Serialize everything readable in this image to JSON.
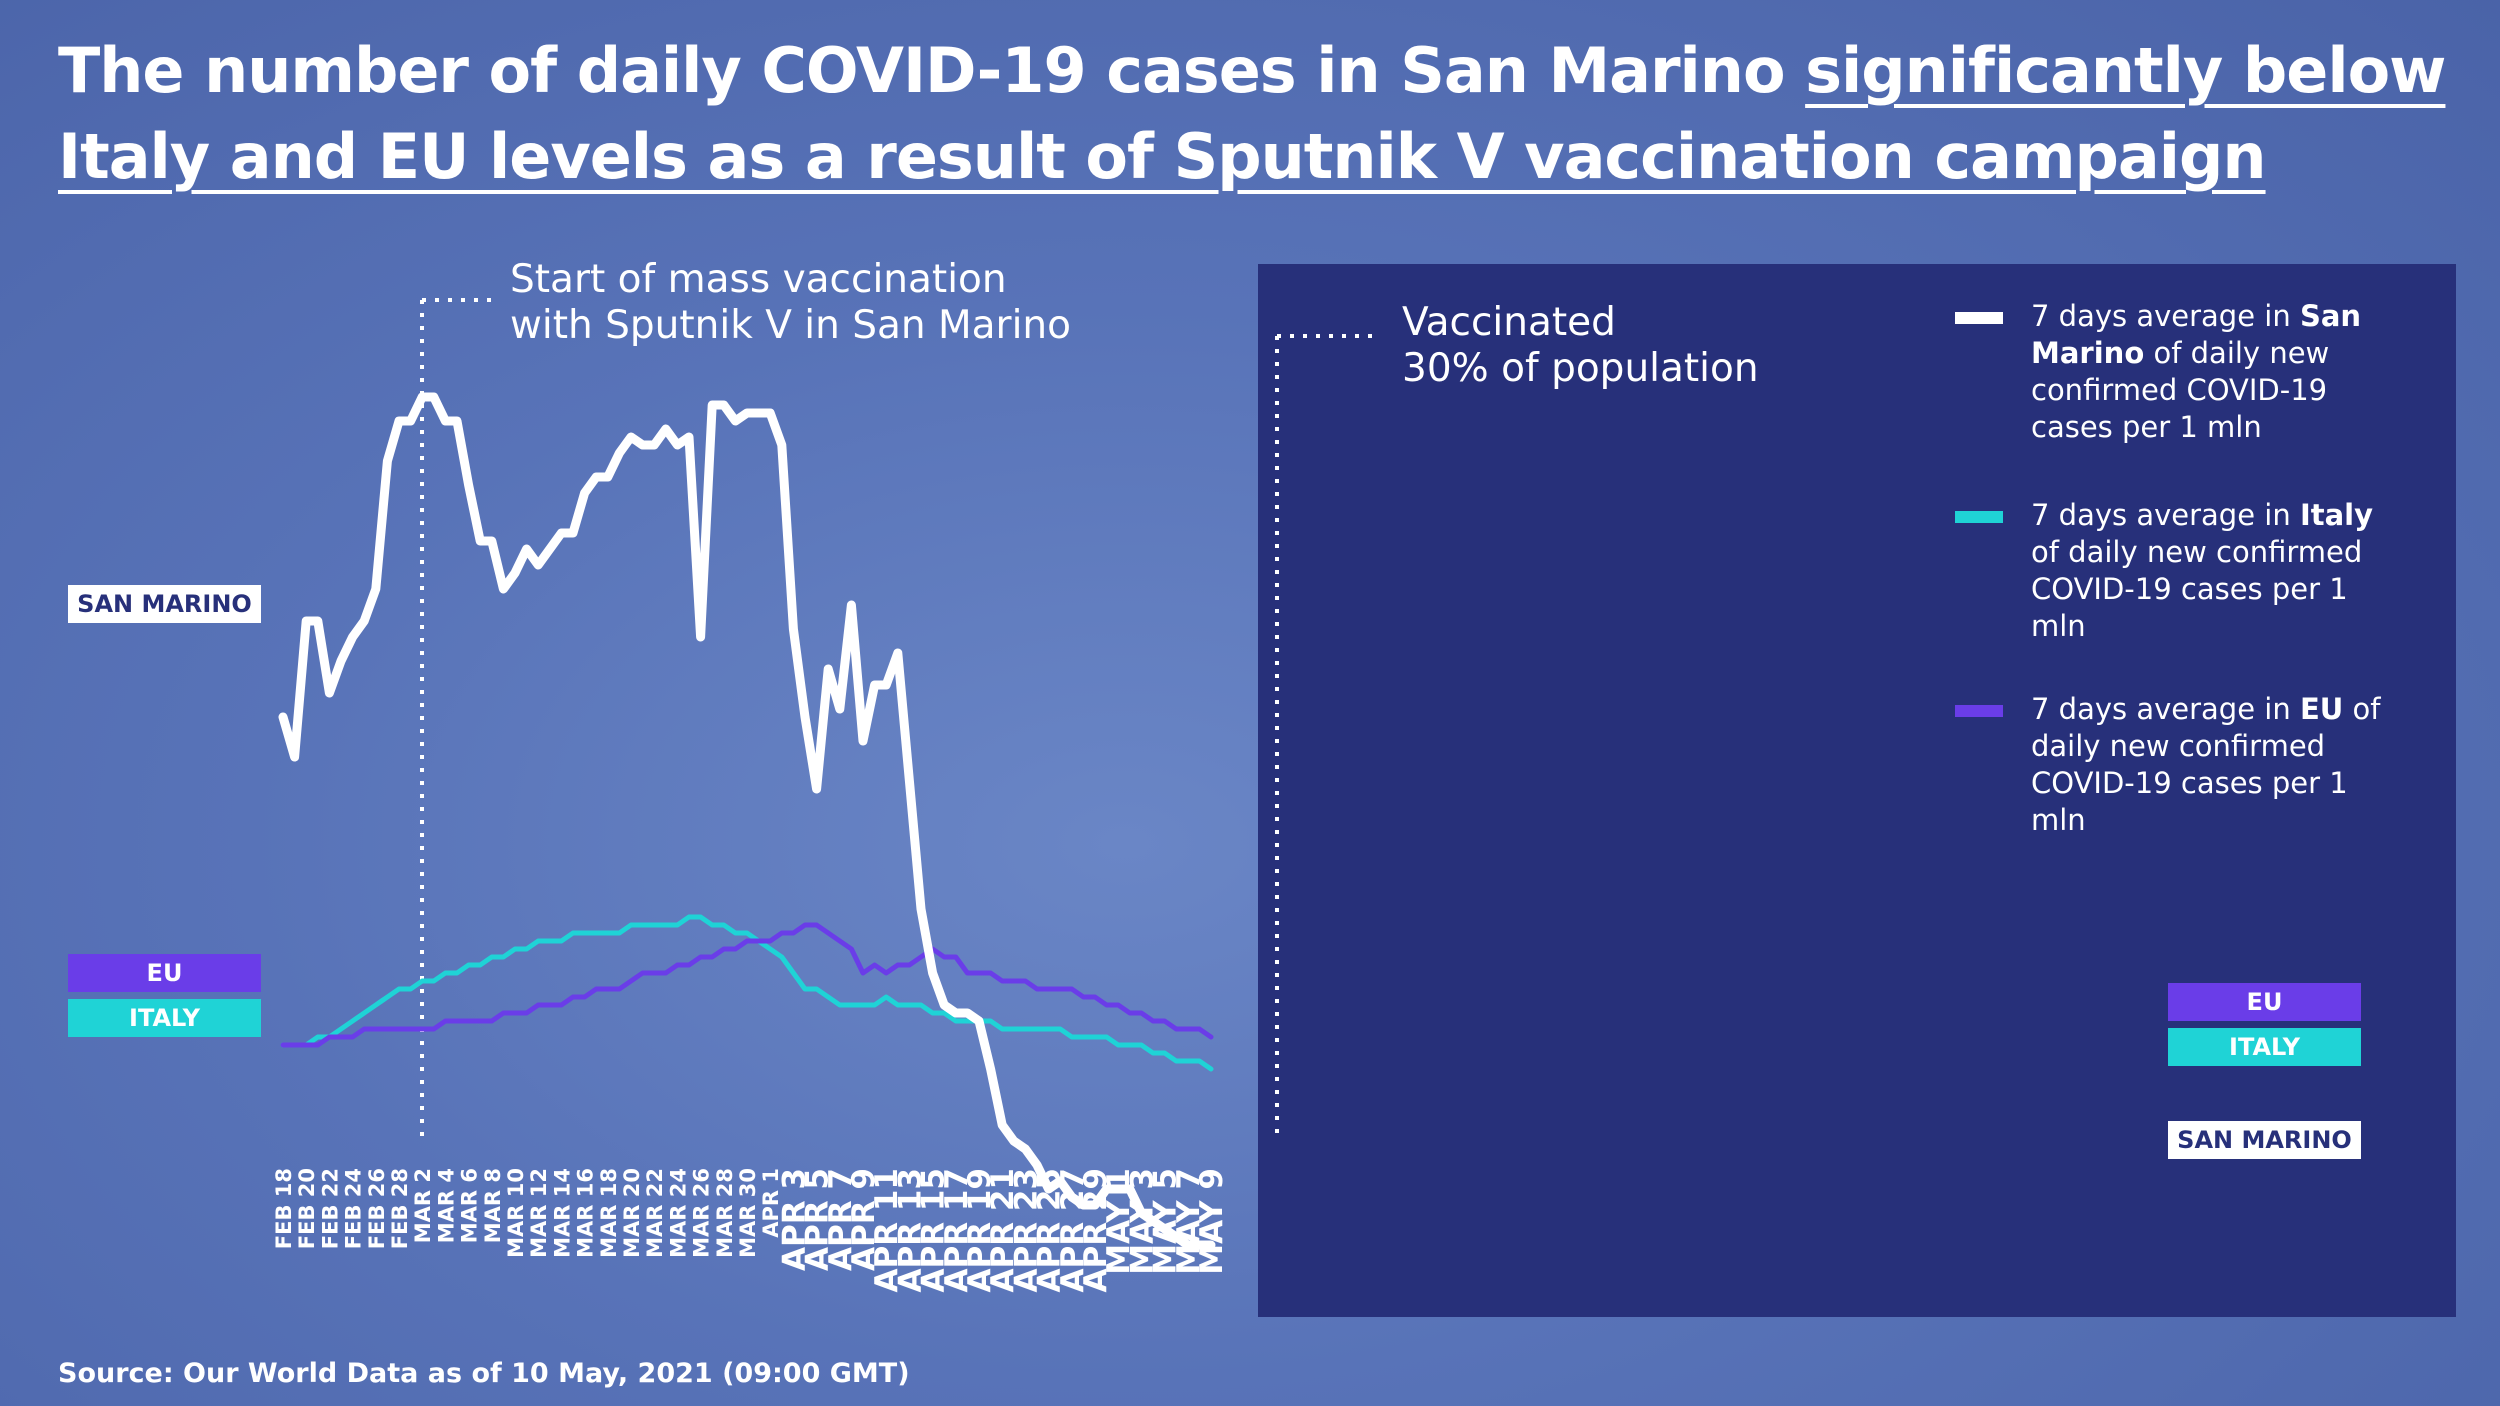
{
  "title": {
    "part1": "The number of daily COVID-19 cases in San Marino ",
    "part2": "significantly below Italy and EU levels as a result of Sputnik V vaccination campaign"
  },
  "source": "Source: Our World Data as of 10 May, 2021 (09:00 GMT)",
  "annotations": {
    "mass_vaccination_line1": "Start of mass vaccination",
    "mass_vaccination_line2": "with Sputnik V in San Marino",
    "vaccinated_line1": "Vaccinated",
    "vaccinated_line2": "30% of population"
  },
  "legend": [
    {
      "pre": "7 days average in ",
      "bold": "San Marino",
      "post": " of daily new confirmed COVID-19 cases per 1 mln",
      "color": "#ffffff"
    },
    {
      "pre": "7 days average in ",
      "bold": "Italy",
      "post": " of daily new confirmed COVID-19 cases per 1 mln",
      "color": "#1fd3d6"
    },
    {
      "pre": "7 days average in ",
      "bold": "EU",
      "post": " of daily new confirmed COVID-19 cases per 1 mln",
      "color": "#6a3de8"
    }
  ],
  "tags": {
    "san_marino_left": "SAN MARINO",
    "eu_left": "EU",
    "italy_left": "ITALY",
    "eu_right": "EU",
    "italy_right": "ITALY",
    "san_marino_right": "SAN MARINO"
  },
  "colors": {
    "san_marino": "#ffffff",
    "italy": "#1fd3d6",
    "eu": "#6a3de8",
    "panel": "#27307a"
  },
  "chart_data": {
    "type": "line",
    "title": "The number of daily COVID-19 cases in San Marino significantly below Italy and EU levels as a result of Sputnik V vaccination campaign",
    "x_start": "FEB 18",
    "x_end": "MAY 9",
    "x_tick_labels": [
      "FEB 18",
      "FEB 20",
      "FEB 22",
      "FEB 24",
      "FEB 26",
      "FEB 28",
      "MAR 2",
      "MAR 4",
      "MAR 6",
      "MAR 8",
      "MAR 10",
      "MAR 12",
      "MAR 14",
      "MAR 16",
      "MAR 18",
      "MAR 20",
      "MAR 22",
      "MAR 24",
      "MAR 26",
      "MAR 28",
      "MAR 30",
      "APR 1",
      "APR 3",
      "APR 5",
      "APR 7",
      "APR 9",
      "APR 11",
      "APR 13",
      "APR 15",
      "APR 17",
      "APR 19",
      "APR 21",
      "APR 23",
      "APR 25",
      "APR 27",
      "APR 29",
      "MAY 1",
      "MAY 3",
      "MAY 5",
      "MAY 7",
      "MAY 9"
    ],
    "marker_lines": [
      {
        "at": "FEB 25",
        "label": "Start of mass vaccination with Sputnik V in San Marino"
      },
      {
        "at": "APR 2",
        "label": "Vaccinated 30% of population"
      }
    ],
    "highlight_from": "APR 2",
    "y_axis_shown": false,
    "y_ticks_shown": false,
    "series": [
      {
        "name": "San Marino",
        "color": "#ffffff",
        "values": [
          0.54,
          0.49,
          0.66,
          0.66,
          0.57,
          0.61,
          0.64,
          0.66,
          0.7,
          0.86,
          0.91,
          0.91,
          0.94,
          0.94,
          0.91,
          0.91,
          0.83,
          0.76,
          0.76,
          0.7,
          0.72,
          0.75,
          0.73,
          0.75,
          0.77,
          0.77,
          0.82,
          0.84,
          0.84,
          0.87,
          0.89,
          0.88,
          0.88,
          0.9,
          0.88,
          0.89,
          0.64,
          0.93,
          0.93,
          0.91,
          0.92,
          0.92,
          0.92,
          0.88,
          0.65,
          0.54,
          0.45,
          0.6,
          0.55,
          0.68,
          0.51,
          0.58,
          0.58,
          0.62,
          0.46,
          0.3,
          0.22,
          0.18,
          0.17,
          0.17,
          0.16,
          0.1,
          0.03,
          0.01,
          0.0,
          -0.02,
          -0.05,
          -0.04,
          -0.06,
          -0.07,
          -0.07,
          -0.05,
          -0.05,
          -0.05,
          -0.08,
          -0.09,
          -0.1,
          -0.11,
          -0.12,
          -0.12,
          -0.12
        ]
      },
      {
        "name": "Italy",
        "color": "#1fd3d6",
        "values": [
          0.13,
          0.13,
          0.13,
          0.14,
          0.14,
          0.15,
          0.16,
          0.17,
          0.18,
          0.19,
          0.2,
          0.2,
          0.21,
          0.21,
          0.22,
          0.22,
          0.23,
          0.23,
          0.24,
          0.24,
          0.25,
          0.25,
          0.26,
          0.26,
          0.26,
          0.27,
          0.27,
          0.27,
          0.27,
          0.27,
          0.28,
          0.28,
          0.28,
          0.28,
          0.28,
          0.29,
          0.29,
          0.28,
          0.28,
          0.27,
          0.27,
          0.26,
          0.25,
          0.24,
          0.22,
          0.2,
          0.2,
          0.19,
          0.18,
          0.18,
          0.18,
          0.18,
          0.19,
          0.18,
          0.18,
          0.18,
          0.17,
          0.17,
          0.16,
          0.16,
          0.16,
          0.16,
          0.15,
          0.15,
          0.15,
          0.15,
          0.15,
          0.15,
          0.14,
          0.14,
          0.14,
          0.14,
          0.13,
          0.13,
          0.13,
          0.12,
          0.12,
          0.11,
          0.11,
          0.11,
          0.1
        ]
      },
      {
        "name": "EU",
        "color": "#6a3de8",
        "values": [
          0.13,
          0.13,
          0.13,
          0.13,
          0.14,
          0.14,
          0.14,
          0.15,
          0.15,
          0.15,
          0.15,
          0.15,
          0.15,
          0.15,
          0.16,
          0.16,
          0.16,
          0.16,
          0.16,
          0.17,
          0.17,
          0.17,
          0.18,
          0.18,
          0.18,
          0.19,
          0.19,
          0.2,
          0.2,
          0.2,
          0.21,
          0.22,
          0.22,
          0.22,
          0.23,
          0.23,
          0.24,
          0.24,
          0.25,
          0.25,
          0.26,
          0.26,
          0.26,
          0.27,
          0.27,
          0.28,
          0.28,
          0.27,
          0.26,
          0.25,
          0.22,
          0.23,
          0.22,
          0.23,
          0.23,
          0.24,
          0.25,
          0.24,
          0.24,
          0.22,
          0.22,
          0.22,
          0.21,
          0.21,
          0.21,
          0.2,
          0.2,
          0.2,
          0.2,
          0.19,
          0.19,
          0.18,
          0.18,
          0.17,
          0.17,
          0.16,
          0.16,
          0.15,
          0.15,
          0.15,
          0.14
        ]
      }
    ]
  }
}
